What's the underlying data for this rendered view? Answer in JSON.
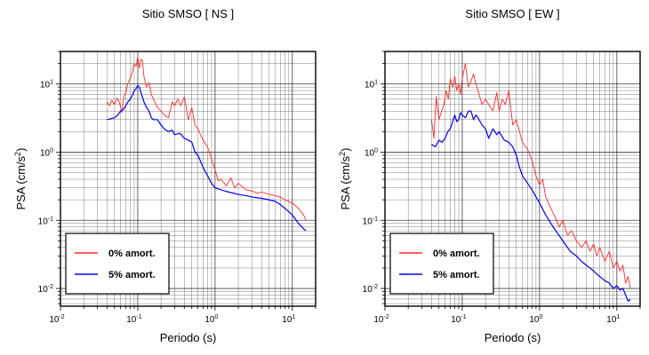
{
  "colors": {
    "undamped": "#ff2a2a",
    "damped": "#0000ee",
    "grid": "#000000"
  },
  "chart_data": [
    {
      "type": "line",
      "title": "Sitio SMSO [ NS ]",
      "xlabel": "Periodo (s)",
      "ylabel": "PSA (cm/s²)",
      "xscale": "log",
      "yscale": "log",
      "xlim": [
        0.01,
        20
      ],
      "ylim": [
        0.0055,
        30
      ],
      "grid": true,
      "legend_position": "bottom-left",
      "x_ticks": [
        {
          "base": "10",
          "exp": "-2"
        },
        {
          "base": "10",
          "exp": "-1"
        },
        {
          "base": "10",
          "exp": "0"
        },
        {
          "base": "10",
          "exp": "1"
        }
      ],
      "y_ticks": [
        {
          "base": "10",
          "exp": "-2"
        },
        {
          "base": "10",
          "exp": "-1"
        },
        {
          "base": "10",
          "exp": "0"
        },
        {
          "base": "10",
          "exp": "1"
        }
      ],
      "series": [
        {
          "name": "0% amort.",
          "color": "#ff2a2a",
          "x": [
            0.04,
            0.043,
            0.046,
            0.05,
            0.054,
            0.058,
            0.062,
            0.066,
            0.07,
            0.075,
            0.08,
            0.085,
            0.09,
            0.095,
            0.1,
            0.105,
            0.11,
            0.115,
            0.12,
            0.13,
            0.14,
            0.15,
            0.16,
            0.18,
            0.2,
            0.22,
            0.25,
            0.28,
            0.3,
            0.33,
            0.36,
            0.4,
            0.45,
            0.5,
            0.55,
            0.6,
            0.7,
            0.8,
            0.9,
            1.0,
            1.1,
            1.2,
            1.4,
            1.6,
            1.8,
            2.0,
            2.5,
            3.0,
            3.5,
            4.0,
            5.0,
            6.0,
            7.0,
            8.0,
            10,
            12,
            14,
            15
          ],
          "y": [
            5.5,
            4.8,
            5.8,
            5.0,
            6.2,
            5.4,
            3.8,
            6.5,
            7.5,
            10.5,
            12,
            15,
            20,
            18,
            25,
            17,
            23,
            22,
            13,
            9,
            10.5,
            7,
            6,
            4.5,
            4,
            3.5,
            3.2,
            5.5,
            4.8,
            6,
            4.8,
            6.5,
            3,
            4.5,
            2.5,
            2.2,
            1.5,
            1.2,
            0.8,
            0.55,
            0.38,
            0.4,
            0.32,
            0.42,
            0.3,
            0.35,
            0.28,
            0.27,
            0.25,
            0.26,
            0.24,
            0.23,
            0.22,
            0.2,
            0.18,
            0.15,
            0.12,
            0.1
          ]
        },
        {
          "name": "5% amort.",
          "color": "#0000ee",
          "x": [
            0.04,
            0.045,
            0.05,
            0.055,
            0.06,
            0.065,
            0.07,
            0.075,
            0.08,
            0.085,
            0.09,
            0.095,
            0.1,
            0.105,
            0.11,
            0.12,
            0.13,
            0.14,
            0.15,
            0.16,
            0.18,
            0.2,
            0.22,
            0.25,
            0.28,
            0.3,
            0.35,
            0.4,
            0.45,
            0.5,
            0.55,
            0.6,
            0.7,
            0.8,
            0.9,
            1.0,
            1.2,
            1.5,
            2.0,
            2.5,
            3.0,
            4.0,
            5.0,
            6.0,
            7.0,
            8.0,
            10,
            12,
            14,
            15
          ],
          "y": [
            3,
            3.1,
            3.2,
            3.5,
            4,
            4.2,
            4.8,
            5.5,
            6,
            6.8,
            8,
            8.5,
            9.5,
            9,
            7.5,
            5.5,
            4.5,
            4,
            3.2,
            3,
            3,
            2.5,
            2.2,
            2,
            2.1,
            1.8,
            1.9,
            1.6,
            1.5,
            1.4,
            1,
            0.9,
            0.6,
            0.45,
            0.35,
            0.3,
            0.28,
            0.26,
            0.24,
            0.23,
            0.22,
            0.21,
            0.2,
            0.19,
            0.17,
            0.15,
            0.12,
            0.09,
            0.075,
            0.07
          ]
        }
      ]
    },
    {
      "type": "line",
      "title": "Sitio SMSO [ EW ]",
      "xlabel": "Periodo (s)",
      "ylabel": "PSA (cm/s²)",
      "xscale": "log",
      "yscale": "log",
      "xlim": [
        0.01,
        20
      ],
      "ylim": [
        0.0055,
        30
      ],
      "grid": true,
      "legend_position": "bottom-left",
      "x_ticks": [
        {
          "base": "10",
          "exp": "-2"
        },
        {
          "base": "10",
          "exp": "-1"
        },
        {
          "base": "10",
          "exp": "0"
        },
        {
          "base": "10",
          "exp": "1"
        }
      ],
      "y_ticks": [
        {
          "base": "10",
          "exp": "-2"
        },
        {
          "base": "10",
          "exp": "-1"
        },
        {
          "base": "10",
          "exp": "0"
        },
        {
          "base": "10",
          "exp": "1"
        }
      ],
      "series": [
        {
          "name": "0% amort.",
          "color": "#ff2a2a",
          "x": [
            0.04,
            0.043,
            0.046,
            0.05,
            0.054,
            0.058,
            0.062,
            0.066,
            0.07,
            0.075,
            0.08,
            0.085,
            0.09,
            0.095,
            0.1,
            0.11,
            0.12,
            0.13,
            0.14,
            0.15,
            0.16,
            0.18,
            0.2,
            0.22,
            0.25,
            0.28,
            0.3,
            0.33,
            0.36,
            0.4,
            0.45,
            0.5,
            0.55,
            0.6,
            0.7,
            0.8,
            0.9,
            1.0,
            1.1,
            1.2,
            1.4,
            1.6,
            1.8,
            2.0,
            2.3,
            2.6,
            3.0,
            3.5,
            4.0,
            4.5,
            5.0,
            5.5,
            6.0,
            7.0,
            8.0,
            9.0,
            10,
            11,
            12,
            13,
            14,
            15
          ],
          "y": [
            3,
            1.6,
            6.5,
            3,
            4,
            5,
            8,
            6,
            12,
            9,
            13,
            8,
            10,
            7,
            12,
            20,
            9,
            11,
            14,
            10,
            8,
            5,
            6,
            5,
            4,
            7.5,
            4,
            6,
            5,
            8,
            2.5,
            3,
            2,
            1.4,
            1.1,
            0.75,
            0.45,
            0.33,
            0.4,
            0.22,
            0.15,
            0.11,
            0.08,
            0.1,
            0.06,
            0.07,
            0.05,
            0.04,
            0.05,
            0.035,
            0.045,
            0.03,
            0.04,
            0.025,
            0.035,
            0.02,
            0.025,
            0.018,
            0.022,
            0.012,
            0.015,
            0.01
          ]
        },
        {
          "name": "5% amort.",
          "color": "#0000ee",
          "x": [
            0.04,
            0.045,
            0.05,
            0.055,
            0.06,
            0.065,
            0.07,
            0.075,
            0.08,
            0.085,
            0.09,
            0.095,
            0.1,
            0.11,
            0.12,
            0.13,
            0.14,
            0.15,
            0.16,
            0.18,
            0.2,
            0.22,
            0.25,
            0.28,
            0.3,
            0.35,
            0.4,
            0.45,
            0.5,
            0.55,
            0.6,
            0.7,
            0.8,
            0.9,
            1.0,
            1.2,
            1.5,
            2.0,
            2.5,
            3.0,
            3.5,
            4.0,
            4.5,
            5.0,
            6.0,
            7.0,
            8.0,
            9.0,
            10,
            11,
            12,
            13,
            14,
            15
          ],
          "y": [
            1.3,
            1.2,
            1.5,
            1.4,
            1.6,
            2,
            2.2,
            2.8,
            3.5,
            2.8,
            3,
            3.8,
            3.5,
            3.2,
            4,
            4,
            3,
            3.5,
            3.2,
            2.5,
            2.2,
            1.6,
            2.2,
            1.8,
            2,
            1.5,
            1.4,
            1.2,
            0.9,
            0.6,
            0.45,
            0.35,
            0.28,
            0.22,
            0.18,
            0.12,
            0.08,
            0.05,
            0.035,
            0.03,
            0.025,
            0.022,
            0.02,
            0.018,
            0.015,
            0.013,
            0.012,
            0.01,
            0.011,
            0.0095,
            0.01,
            0.008,
            0.0065,
            0.007
          ]
        }
      ]
    }
  ]
}
